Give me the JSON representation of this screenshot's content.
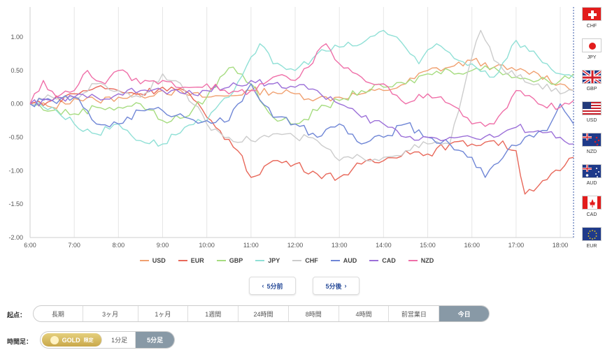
{
  "chart_data": {
    "type": "line",
    "y_ticks": [
      "1.00",
      "0.50",
      "0.00",
      "-0.50",
      "-1.00",
      "-1.50",
      "-2.00"
    ],
    "y_values": [
      1.0,
      0.5,
      0.0,
      -0.5,
      -1.0,
      -1.5,
      -2.0
    ],
    "ylim": [
      -2.0,
      1.45
    ],
    "x_ticks": [
      "6:00",
      "7:00",
      "8:00",
      "9:00",
      "10:00",
      "11:00",
      "12:00",
      "13:00",
      "14:00",
      "15:00",
      "16:00",
      "17:00",
      "18:00"
    ],
    "x_range_hours": [
      6.0,
      18.3
    ],
    "series": [
      {
        "name": "USD",
        "color": "#f0a070",
        "x": [
          6,
          6.5,
          7,
          7.5,
          8,
          8.5,
          9,
          9.5,
          10,
          10.5,
          11,
          11.5,
          12,
          12.5,
          13,
          13.5,
          14,
          14.5,
          15,
          15.5,
          16,
          16.5,
          17,
          17.5,
          18,
          18.3
        ],
        "values": [
          0.0,
          -0.05,
          0.08,
          0.05,
          0.1,
          0.12,
          0.2,
          0.15,
          0.1,
          0.12,
          0.2,
          0.18,
          0.15,
          0.08,
          0.1,
          0.15,
          0.2,
          0.3,
          0.5,
          0.55,
          0.65,
          0.55,
          0.5,
          0.45,
          0.3,
          0.2
        ]
      },
      {
        "name": "EUR",
        "color": "#e8685a",
        "x": [
          6,
          6.5,
          7,
          7.5,
          8,
          8.5,
          9,
          9.5,
          10,
          10.3,
          10.7,
          11,
          11.5,
          12,
          12.5,
          13,
          13.5,
          14,
          14.5,
          15,
          15.5,
          16,
          16.5,
          17,
          17.2,
          17.6,
          18,
          18.3
        ],
        "values": [
          0.0,
          0.05,
          0.15,
          0.25,
          0.2,
          0.15,
          0.25,
          0.2,
          -0.2,
          -0.4,
          -0.7,
          -1.1,
          -0.85,
          -0.9,
          -1.05,
          -1.1,
          -0.9,
          -0.85,
          -0.7,
          -0.75,
          -0.6,
          -0.6,
          -0.55,
          -0.7,
          -1.35,
          -1.15,
          -1.0,
          -0.8
        ]
      },
      {
        "name": "GBP",
        "color": "#a6dc80",
        "x": [
          6,
          6.5,
          7,
          7.5,
          8,
          8.5,
          9,
          9.5,
          10,
          10.3,
          10.6,
          11,
          11.5,
          12,
          12.5,
          13,
          13.5,
          14,
          14.5,
          15,
          15.5,
          16,
          16.5,
          17,
          17.5,
          18,
          18.3
        ],
        "values": [
          0.0,
          -0.1,
          -0.15,
          -0.05,
          -0.05,
          0.0,
          -0.25,
          -0.2,
          0.1,
          0.4,
          0.55,
          0.3,
          -0.2,
          -0.3,
          -0.1,
          0.05,
          0.2,
          0.25,
          0.3,
          0.45,
          0.5,
          0.5,
          0.55,
          0.4,
          0.35,
          0.35,
          0.45
        ]
      },
      {
        "name": "JPY",
        "color": "#90e0d6",
        "x": [
          6,
          6.5,
          7,
          7.5,
          8,
          8.5,
          9,
          9.5,
          10,
          10.5,
          11,
          11.2,
          11.5,
          12,
          12.5,
          13,
          13.5,
          14,
          14.3,
          14.8,
          15.2,
          15.7,
          16,
          16.5,
          17,
          17.5,
          18,
          18.3
        ],
        "values": [
          0.0,
          -0.05,
          -0.3,
          -0.45,
          -0.3,
          -0.55,
          -0.6,
          -0.35,
          -0.25,
          0.1,
          0.7,
          0.9,
          0.6,
          0.5,
          0.75,
          0.85,
          0.9,
          1.1,
          1.0,
          0.6,
          0.9,
          0.65,
          0.6,
          0.4,
          0.95,
          0.7,
          0.45,
          0.4
        ]
      },
      {
        "name": "CHF",
        "color": "#cccccc",
        "x": [
          6,
          6.5,
          7,
          7.5,
          8,
          8.5,
          9,
          9.5,
          10,
          10.5,
          11,
          11.5,
          12,
          12.5,
          13,
          13.5,
          14,
          14.5,
          15,
          15.5,
          16,
          16.2,
          16.5,
          17,
          17.5,
          18,
          18.3
        ],
        "values": [
          0.0,
          0.1,
          0.1,
          0.3,
          0.2,
          0.1,
          0.45,
          0.2,
          -0.3,
          -0.5,
          -0.55,
          -0.45,
          -0.5,
          -0.55,
          -0.85,
          -0.8,
          -0.8,
          -0.7,
          -0.6,
          -0.6,
          0.7,
          1.1,
          0.65,
          0.4,
          0.3,
          0.15,
          0.2
        ]
      },
      {
        "name": "AUD",
        "color": "#6f86d6",
        "x": [
          6,
          6.5,
          7,
          7.5,
          8,
          8.5,
          9,
          9.5,
          10,
          10.5,
          11,
          11.5,
          12,
          12.5,
          13,
          13.5,
          14,
          14.5,
          15,
          15.5,
          16,
          16.3,
          16.8,
          17.2,
          17.7,
          18,
          18.3
        ],
        "values": [
          0.0,
          0.05,
          0.1,
          -0.3,
          -0.3,
          -0.1,
          -0.1,
          -0.2,
          -0.25,
          -0.25,
          0.3,
          -0.2,
          -0.3,
          -0.5,
          -0.3,
          -0.6,
          -0.5,
          -0.3,
          -0.5,
          -0.6,
          -0.8,
          -1.1,
          -0.7,
          -0.5,
          -0.4,
          0.0,
          -0.3
        ]
      },
      {
        "name": "CAD",
        "color": "#9b6fd8",
        "x": [
          6,
          6.5,
          7,
          7.5,
          8,
          8.5,
          9,
          9.5,
          10,
          10.5,
          11,
          11.5,
          12,
          12.5,
          13,
          13.5,
          14,
          14.5,
          15,
          15.5,
          16,
          16.5,
          17,
          17.5,
          18,
          18.3
        ],
        "values": [
          0.0,
          0.05,
          0.1,
          0.1,
          0.15,
          0.2,
          0.2,
          0.15,
          0.2,
          0.25,
          0.35,
          0.3,
          0.25,
          0.2,
          0.0,
          -0.2,
          -0.3,
          -0.5,
          -0.5,
          -0.5,
          -0.5,
          -0.5,
          -0.35,
          -0.4,
          -0.5,
          -0.6
        ]
      },
      {
        "name": "NZD",
        "color": "#ef6fa8",
        "x": [
          6,
          6.3,
          6.6,
          7,
          7.3,
          7.7,
          8,
          8.5,
          9,
          9.5,
          10,
          10.5,
          11,
          11.5,
          12,
          12.3,
          12.7,
          13,
          13.5,
          14,
          14.5,
          15,
          15.5,
          16,
          16.5,
          17,
          17.5,
          18,
          18.3
        ],
        "values": [
          0.0,
          0.35,
          0.1,
          0.2,
          0.5,
          0.3,
          0.5,
          0.3,
          0.35,
          0.25,
          0.3,
          0.15,
          0.2,
          0.4,
          0.35,
          0.55,
          0.9,
          0.6,
          0.4,
          0.3,
          0.0,
          0.15,
          0.0,
          -0.3,
          -0.3,
          0.2,
          0.0,
          -0.05,
          0.05
        ]
      }
    ]
  },
  "legend": [
    "USD",
    "EUR",
    "GBP",
    "JPY",
    "CHF",
    "AUD",
    "CAD",
    "NZD"
  ],
  "flags": [
    {
      "code": "CHF",
      "icon": "switzerland-flag"
    },
    {
      "code": "JPY",
      "icon": "japan-flag"
    },
    {
      "code": "GBP",
      "icon": "uk-flag"
    },
    {
      "code": "USD",
      "icon": "usa-flag"
    },
    {
      "code": "NZD",
      "icon": "new-zealand-flag"
    },
    {
      "code": "AUD",
      "icon": "australia-flag"
    },
    {
      "code": "CAD",
      "icon": "canada-flag"
    },
    {
      "code": "EUR",
      "icon": "eu-flag"
    }
  ],
  "nav": {
    "prev": "5分前",
    "next": "5分後"
  },
  "origin": {
    "label": "起点：",
    "options": [
      "長期",
      "3ヶ月",
      "1ヶ月",
      "1週間",
      "24時間",
      "8時間",
      "4時間",
      "前営業日",
      "今日"
    ],
    "active": "今日"
  },
  "timeframe": {
    "label": "時間足：",
    "gold": "GOLD",
    "gold_tag": "限定",
    "options": [
      "1分足",
      "5分足"
    ],
    "active": "5分足"
  }
}
